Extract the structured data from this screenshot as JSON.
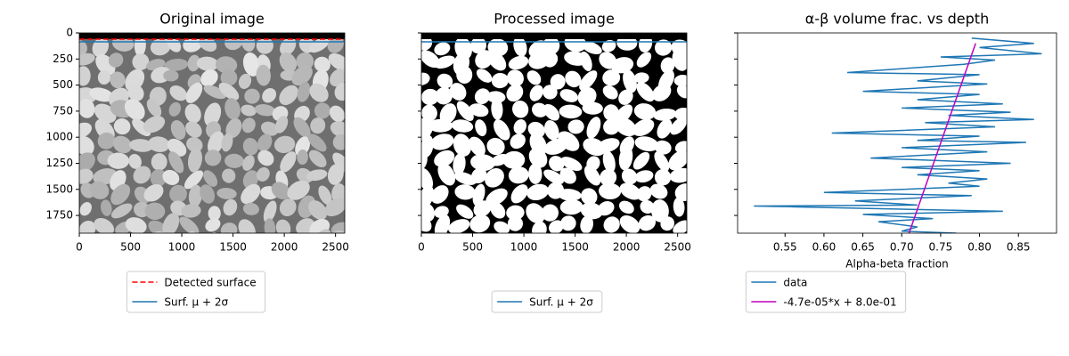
{
  "chart_data": [
    {
      "type": "image",
      "title": "Original image",
      "xlim": [
        0,
        2590
      ],
      "xticks": [
        0,
        500,
        1000,
        1500,
        2000,
        2500
      ],
      "ylim": [
        1920,
        0
      ],
      "yticks": [
        0,
        250,
        500,
        750,
        1000,
        1250,
        1500,
        1750
      ],
      "ytick_labels": true,
      "texture": "grayscale",
      "legend": "below",
      "series": [
        {
          "name": "Detected surface",
          "color": "#ff0000",
          "style": "dashed",
          "value": 60
        },
        {
          "name": "Surf. μ + 2σ",
          "color": "#1f77b4",
          "style": "solid",
          "value": 85
        }
      ]
    },
    {
      "type": "image",
      "title": "Processed image",
      "xlim": [
        0,
        2590
      ],
      "xticks": [
        0,
        500,
        1000,
        1500,
        2000,
        2500
      ],
      "ylim": [
        1920,
        0
      ],
      "yticks": [
        0,
        250,
        500,
        750,
        1000,
        1250,
        1500,
        1750
      ],
      "ytick_labels": false,
      "texture": "binary",
      "legend": "below",
      "series": [
        {
          "name": "Surf. μ + 2σ",
          "color": "#1f77b4",
          "style": "solid",
          "value": 85
        }
      ]
    },
    {
      "type": "line",
      "title": "α-β volume frac. vs depth",
      "x_label": "Alpha-beta fraction",
      "xlim": [
        0.489,
        0.899
      ],
      "xticks": [
        0.55,
        {
          "value": 0.6,
          "label": "0.60"
        },
        0.65,
        {
          "value": 0.7,
          "label": "0.70"
        },
        0.75,
        {
          "value": 0.8,
          "label": "0.80"
        },
        0.85
      ],
      "ylim": [
        1920,
        0
      ],
      "yticks": [
        0,
        250,
        500,
        750,
        1000,
        1250,
        1500,
        1750
      ],
      "ytick_labels": false,
      "legend": "below",
      "series": [
        {
          "name": "data",
          "color": "#1f77b4",
          "values": [
            0.79,
            0.87,
            0.8,
            0.88,
            0.75,
            0.82,
            0.78,
            0.63,
            0.8,
            0.72,
            0.81,
            0.65,
            0.8,
            0.72,
            0.83,
            0.7,
            0.84,
            0.76,
            0.87,
            0.73,
            0.82,
            0.61,
            0.8,
            0.72,
            0.86,
            0.7,
            0.81,
            0.66,
            0.84,
            0.7,
            0.8,
            0.72,
            0.81,
            0.76,
            0.8,
            0.6,
            0.79,
            0.64,
            0.72,
            0.51,
            0.83,
            0.65,
            0.74,
            0.67,
            0.72,
            0.7,
            0.77
          ],
          "depth": [
            50,
            100,
            140,
            200,
            230,
            260,
            300,
            380,
            400,
            460,
            490,
            560,
            590,
            640,
            680,
            720,
            760,
            790,
            830,
            860,
            900,
            960,
            990,
            1030,
            1050,
            1100,
            1140,
            1200,
            1250,
            1290,
            1320,
            1360,
            1400,
            1440,
            1470,
            1530,
            1560,
            1610,
            1650,
            1660,
            1710,
            1740,
            1780,
            1810,
            1860,
            1900,
            1920
          ]
        },
        {
          "name": "-4.7e-05*x + 8.0e-01",
          "color": "#bf00bf",
          "values": [
            0.795,
            0.708
          ],
          "depth": [
            100,
            1950
          ]
        }
      ]
    }
  ]
}
